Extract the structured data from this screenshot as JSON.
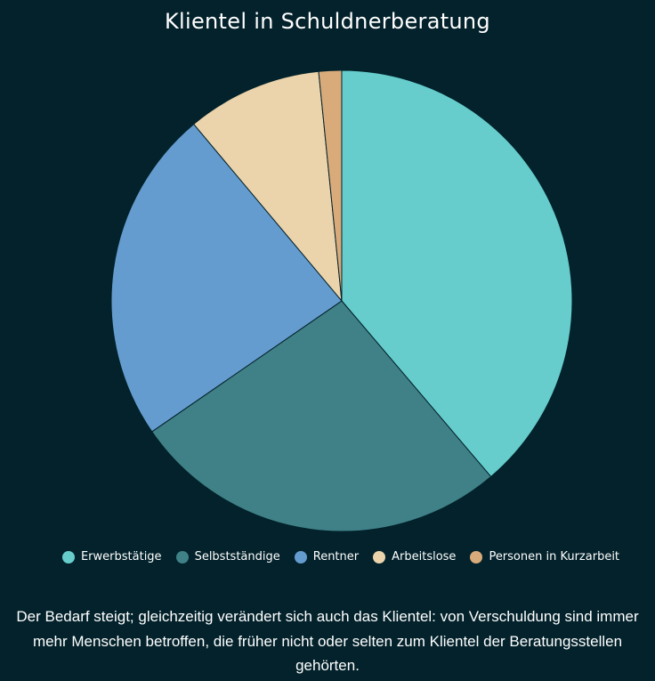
{
  "chart_data": {
    "type": "pie",
    "title": "Klientel in Schuldnerberatung",
    "categories": [
      "Erwerbstätige",
      "Selbstständige",
      "Rentner",
      "Arbeitslose",
      "Personen in Kurzarbeit"
    ],
    "values": [
      38.8,
      26.6,
      23.5,
      9.5,
      1.6
    ],
    "colors": [
      "#66cdcc",
      "#3f8187",
      "#659ccf",
      "#ebd3ab",
      "#d9ab7b"
    ],
    "legend": "bottom",
    "slice_border_color": "#03222b"
  },
  "caption": "Der Bedarf steigt; gleichzeitig verändert sich auch das Klientel: von Verschuldung sind immer mehr Menschen betroffen, die früher nicht oder selten zum Klientel der Beratungsstellen gehörten.",
  "colors": {
    "background": "#03222b",
    "text": "#ffffff"
  }
}
